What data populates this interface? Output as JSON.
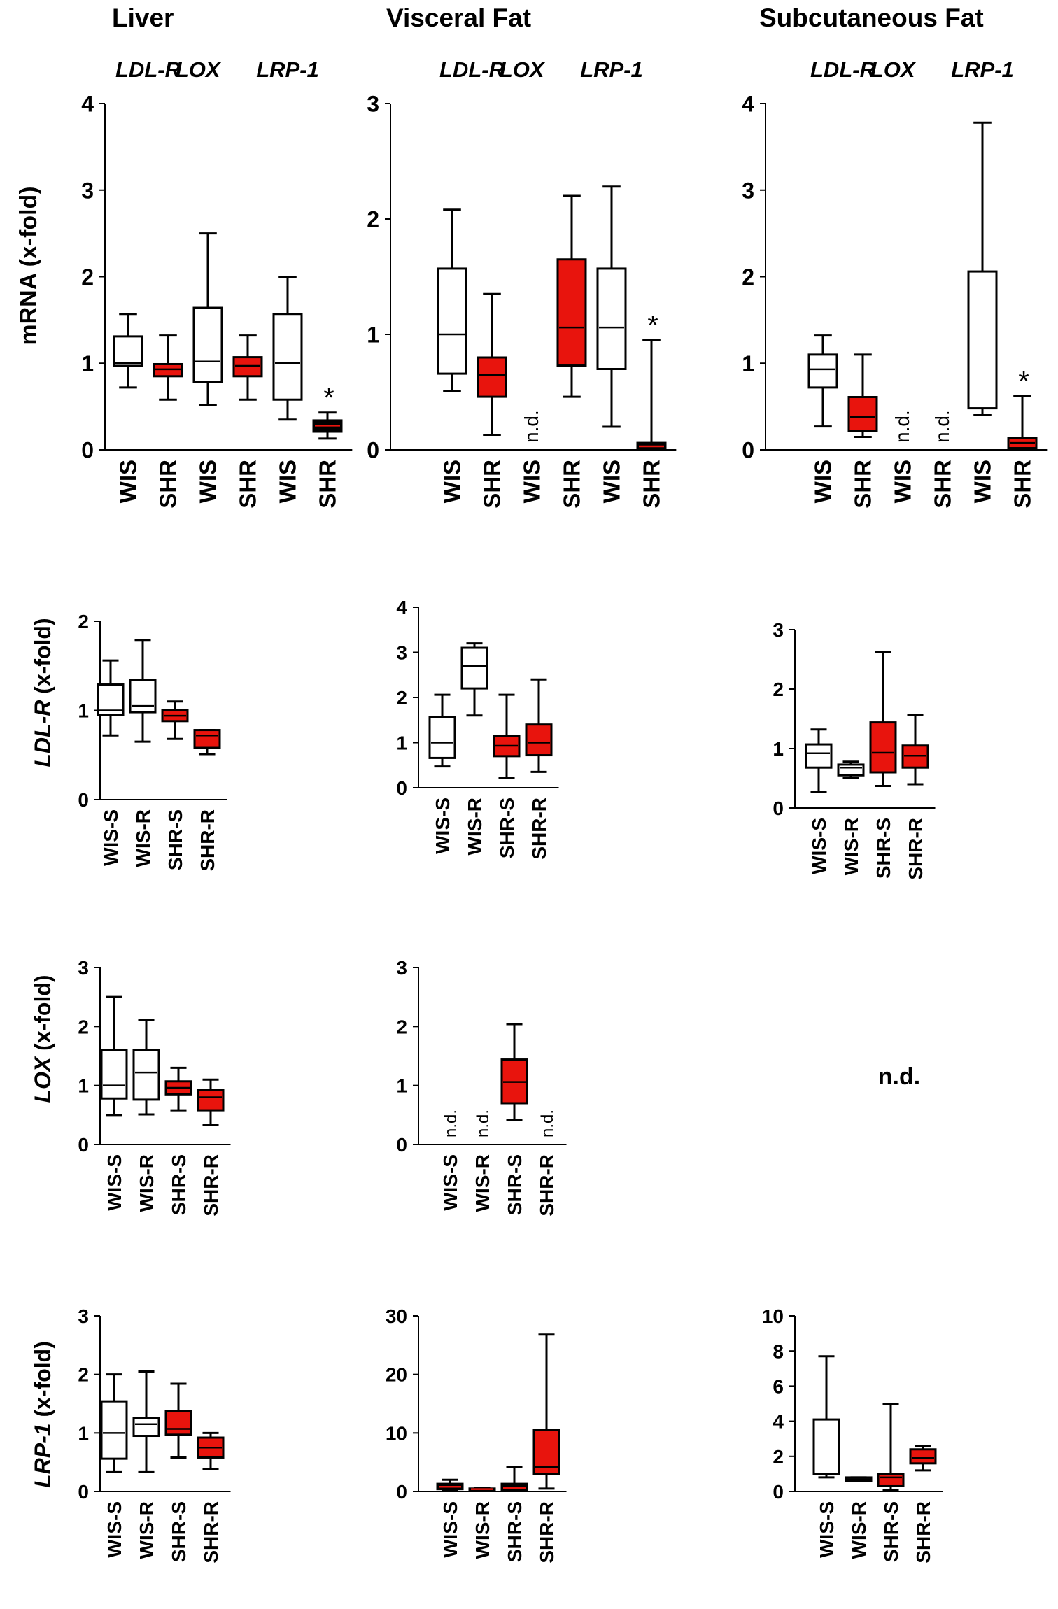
{
  "colors": {
    "wis": "#ffffff",
    "shr": "#e8140d",
    "shr_dark": "#000000",
    "line": "#000000",
    "median_on_red": "#000000",
    "median_on_white": "#000000",
    "median_on_black": "#e8140d"
  },
  "columns": {
    "liver": "Liver",
    "visceral": "Visceral Fat",
    "subcutaneous": "Subcutaneous Fat"
  },
  "row_labels": {
    "mrna": "mRNA (x-fold)",
    "ldlr": {
      "gene": "LDL-R",
      "suffix": " (x-fold)"
    },
    "lox": {
      "gene": "LOX",
      "suffix": " (x-fold)"
    },
    "lrp1": {
      "gene": "LRP-1",
      "suffix": " (x-fold)"
    }
  },
  "nd_label": "n.d.",
  "subcutaneous_lox_text": "n.d.",
  "chart_data": [
    {
      "id": "liver_mrna",
      "type": "box",
      "title": "Liver",
      "ylabel": "mRNA (x-fold)",
      "gene_groups": [
        "LDL-R",
        "LOX",
        "LRP-1"
      ],
      "ylim": [
        0,
        4
      ],
      "yticks": [
        0,
        1,
        2,
        3,
        4
      ],
      "categories": [
        "WIS",
        "SHR",
        "WIS",
        "SHR",
        "WIS",
        "SHR"
      ],
      "boxes": [
        {
          "cat": "WIS",
          "gene": "LDL-R",
          "fill": "wis",
          "min": 0.72,
          "q1": 0.97,
          "median": 1.0,
          "q3": 1.31,
          "max": 1.57
        },
        {
          "cat": "SHR",
          "gene": "LDL-R",
          "fill": "shr",
          "min": 0.58,
          "q1": 0.85,
          "median": 0.93,
          "q3": 0.99,
          "max": 1.32
        },
        {
          "cat": "WIS",
          "gene": "LOX",
          "fill": "wis",
          "min": 0.52,
          "q1": 0.78,
          "median": 1.02,
          "q3": 1.64,
          "max": 2.5
        },
        {
          "cat": "SHR",
          "gene": "LOX",
          "fill": "shr",
          "min": 0.58,
          "q1": 0.85,
          "median": 0.97,
          "q3": 1.07,
          "max": 1.32
        },
        {
          "cat": "WIS",
          "gene": "LRP-1",
          "fill": "wis",
          "min": 0.35,
          "q1": 0.58,
          "median": 1.0,
          "q3": 1.57,
          "max": 2.0
        },
        {
          "cat": "SHR",
          "gene": "LRP-1",
          "fill": "shr_dark",
          "min": 0.13,
          "q1": 0.21,
          "median": 0.28,
          "q3": 0.34,
          "max": 0.43,
          "star": "*"
        }
      ]
    },
    {
      "id": "visceral_mrna",
      "type": "box",
      "title": "Visceral Fat",
      "gene_groups": [
        "LDL-R",
        "LOX",
        "LRP-1"
      ],
      "ylim": [
        0,
        3
      ],
      "yticks": [
        0,
        1,
        2,
        3
      ],
      "categories": [
        "WIS",
        "SHR",
        "WIS",
        "SHR",
        "WIS",
        "SHR"
      ],
      "boxes": [
        {
          "cat": "WIS",
          "gene": "LDL-R",
          "fill": "wis",
          "min": 0.51,
          "q1": 0.66,
          "median": 1.0,
          "q3": 1.57,
          "max": 2.08
        },
        {
          "cat": "SHR",
          "gene": "LDL-R",
          "fill": "shr",
          "min": 0.13,
          "q1": 0.46,
          "median": 0.65,
          "q3": 0.8,
          "max": 1.35
        },
        {
          "cat": "WIS",
          "gene": "LOX",
          "nd": true
        },
        {
          "cat": "SHR",
          "gene": "LOX",
          "fill": "shr",
          "min": 0.46,
          "q1": 0.73,
          "median": 1.06,
          "q3": 1.65,
          "max": 2.2
        },
        {
          "cat": "WIS",
          "gene": "LRP-1",
          "fill": "wis",
          "min": 0.2,
          "q1": 0.7,
          "median": 1.06,
          "q3": 1.57,
          "max": 2.28
        },
        {
          "cat": "SHR",
          "gene": "LRP-1",
          "fill": "shr_dark",
          "min": 0.0,
          "q1": 0.01,
          "median": 0.03,
          "q3": 0.06,
          "max": 0.95,
          "star": "*"
        }
      ]
    },
    {
      "id": "subcutaneous_mrna",
      "type": "box",
      "title": "Subcutaneous Fat",
      "gene_groups": [
        "LDL-R",
        "LOX",
        "LRP-1"
      ],
      "ylim": [
        0,
        4
      ],
      "yticks": [
        0,
        1,
        2,
        3,
        4
      ],
      "categories": [
        "WIS",
        "SHR",
        "WIS",
        "SHR",
        "WIS",
        "SHR"
      ],
      "boxes": [
        {
          "cat": "WIS",
          "gene": "LDL-R",
          "fill": "wis",
          "min": 0.27,
          "q1": 0.72,
          "median": 0.93,
          "q3": 1.1,
          "max": 1.32
        },
        {
          "cat": "SHR",
          "gene": "LDL-R",
          "fill": "shr",
          "min": 0.15,
          "q1": 0.22,
          "median": 0.38,
          "q3": 0.61,
          "max": 1.1
        },
        {
          "cat": "WIS",
          "gene": "LOX",
          "nd": true
        },
        {
          "cat": "SHR",
          "gene": "LOX",
          "nd": true
        },
        {
          "cat": "WIS",
          "gene": "LRP-1",
          "fill": "wis",
          "min": 0.4,
          "q1": 0.48,
          "median": 0.48,
          "q3": 2.06,
          "max": 3.78
        },
        {
          "cat": "SHR",
          "gene": "LRP-1",
          "fill": "shr",
          "min": 0.0,
          "q1": 0.02,
          "median": 0.08,
          "q3": 0.14,
          "max": 0.62,
          "star": "*"
        }
      ]
    },
    {
      "id": "liver_ldlr",
      "type": "box",
      "ylabel": "LDL-R (x-fold)",
      "ylim": [
        0,
        2
      ],
      "yticks": [
        0,
        1,
        2
      ],
      "categories": [
        "WIS-S",
        "WIS-R",
        "SHR-S",
        "SHR-R"
      ],
      "boxes": [
        {
          "cat": "WIS-S",
          "fill": "wis",
          "min": 0.72,
          "q1": 0.95,
          "median": 1.0,
          "q3": 1.29,
          "max": 1.56
        },
        {
          "cat": "WIS-R",
          "fill": "wis",
          "min": 0.65,
          "q1": 0.98,
          "median": 1.05,
          "q3": 1.34,
          "max": 1.79
        },
        {
          "cat": "SHR-S",
          "fill": "shr",
          "min": 0.68,
          "q1": 0.88,
          "median": 0.94,
          "q3": 1.0,
          "max": 1.1
        },
        {
          "cat": "SHR-R",
          "fill": "shr",
          "min": 0.51,
          "q1": 0.58,
          "median": 0.72,
          "q3": 0.78,
          "max": 0.78
        }
      ]
    },
    {
      "id": "visceral_ldlr",
      "type": "box",
      "ylim": [
        0,
        4
      ],
      "yticks": [
        0,
        1,
        2,
        3,
        4
      ],
      "categories": [
        "WIS-S",
        "WIS-R",
        "SHR-S",
        "SHR-R"
      ],
      "boxes": [
        {
          "cat": "WIS-S",
          "fill": "wis",
          "min": 0.47,
          "q1": 0.66,
          "median": 1.0,
          "q3": 1.57,
          "max": 2.06
        },
        {
          "cat": "WIS-R",
          "fill": "wis",
          "min": 1.6,
          "q1": 2.2,
          "median": 2.7,
          "q3": 3.1,
          "max": 3.2
        },
        {
          "cat": "SHR-S",
          "fill": "shr",
          "min": 0.22,
          "q1": 0.7,
          "median": 0.93,
          "q3": 1.14,
          "max": 2.06
        },
        {
          "cat": "SHR-R",
          "fill": "shr",
          "min": 0.35,
          "q1": 0.72,
          "median": 1.0,
          "q3": 1.4,
          "max": 2.4
        }
      ]
    },
    {
      "id": "subcutaneous_ldlr",
      "type": "box",
      "ylim": [
        0,
        3
      ],
      "yticks": [
        0,
        1,
        2,
        3
      ],
      "categories": [
        "WIS-S",
        "WIS-R",
        "SHR-S",
        "SHR-R"
      ],
      "boxes": [
        {
          "cat": "WIS-S",
          "fill": "wis",
          "min": 0.27,
          "q1": 0.68,
          "median": 0.92,
          "q3": 1.07,
          "max": 1.32
        },
        {
          "cat": "WIS-R",
          "fill": "wis",
          "min": 0.51,
          "q1": 0.55,
          "median": 0.68,
          "q3": 0.73,
          "max": 0.78
        },
        {
          "cat": "SHR-S",
          "fill": "shr",
          "min": 0.37,
          "q1": 0.6,
          "median": 0.93,
          "q3": 1.44,
          "max": 2.62
        },
        {
          "cat": "SHR-R",
          "fill": "shr",
          "min": 0.4,
          "q1": 0.68,
          "median": 0.88,
          "q3": 1.05,
          "max": 1.57
        }
      ]
    },
    {
      "id": "liver_lox",
      "type": "box",
      "ylabel": "LOX (x-fold)",
      "ylim": [
        0,
        3
      ],
      "yticks": [
        0,
        1,
        2,
        3
      ],
      "categories": [
        "WIS-S",
        "WIS-R",
        "SHR-S",
        "SHR-R"
      ],
      "boxes": [
        {
          "cat": "WIS-S",
          "fill": "wis",
          "min": 0.5,
          "q1": 0.78,
          "median": 1.0,
          "q3": 1.6,
          "max": 2.5
        },
        {
          "cat": "WIS-R",
          "fill": "wis",
          "min": 0.51,
          "q1": 0.76,
          "median": 1.22,
          "q3": 1.6,
          "max": 2.11
        },
        {
          "cat": "SHR-S",
          "fill": "shr",
          "min": 0.58,
          "q1": 0.85,
          "median": 0.96,
          "q3": 1.07,
          "max": 1.3
        },
        {
          "cat": "SHR-R",
          "fill": "shr",
          "min": 0.33,
          "q1": 0.58,
          "median": 0.8,
          "q3": 0.93,
          "max": 1.1
        }
      ]
    },
    {
      "id": "visceral_lox",
      "type": "box",
      "ylim": [
        0,
        3
      ],
      "yticks": [
        0,
        1,
        2,
        3
      ],
      "categories": [
        "WIS-S",
        "WIS-R",
        "SHR-S",
        "SHR-R"
      ],
      "boxes": [
        {
          "cat": "WIS-S",
          "nd": true
        },
        {
          "cat": "WIS-R",
          "nd": true
        },
        {
          "cat": "SHR-S",
          "fill": "shr",
          "min": 0.42,
          "q1": 0.7,
          "median": 1.06,
          "q3": 1.44,
          "max": 2.04
        },
        {
          "cat": "SHR-R",
          "nd": true
        }
      ]
    },
    {
      "id": "liver_lrp1",
      "type": "box",
      "ylabel": "LRP-1 (x-fold)",
      "ylim": [
        0,
        3
      ],
      "yticks": [
        0,
        1,
        2,
        3
      ],
      "categories": [
        "WIS-S",
        "WIS-R",
        "SHR-S",
        "SHR-R"
      ],
      "boxes": [
        {
          "cat": "WIS-S",
          "fill": "wis",
          "min": 0.33,
          "q1": 0.56,
          "median": 1.0,
          "q3": 1.54,
          "max": 2.0
        },
        {
          "cat": "WIS-R",
          "fill": "wis",
          "min": 0.33,
          "q1": 0.95,
          "median": 1.15,
          "q3": 1.26,
          "max": 2.05
        },
        {
          "cat": "SHR-S",
          "fill": "shr",
          "min": 0.58,
          "q1": 0.97,
          "median": 1.07,
          "q3": 1.38,
          "max": 1.84
        },
        {
          "cat": "SHR-R",
          "fill": "shr",
          "min": 0.38,
          "q1": 0.58,
          "median": 0.75,
          "q3": 0.92,
          "max": 1.0
        }
      ]
    },
    {
      "id": "visceral_lrp1",
      "type": "box",
      "ylim": [
        0,
        30
      ],
      "yticks": [
        0,
        10,
        20,
        30
      ],
      "categories": [
        "WIS-S",
        "WIS-R",
        "SHR-S",
        "SHR-R"
      ],
      "boxes": [
        {
          "cat": "WIS-S",
          "fill": "shr_dark",
          "min": 0.1,
          "q1": 0.4,
          "median": 0.8,
          "q3": 1.3,
          "max": 2.0
        },
        {
          "cat": "WIS-R",
          "fill": "shr_dark",
          "min": 0.2,
          "q1": 0.3,
          "median": 0.4,
          "q3": 0.5,
          "max": 0.6
        },
        {
          "cat": "SHR-S",
          "fill": "shr_dark",
          "min": 0.1,
          "q1": 0.3,
          "median": 0.6,
          "q3": 1.3,
          "max": 4.2
        },
        {
          "cat": "SHR-R",
          "fill": "shr",
          "min": 0.5,
          "q1": 3.0,
          "median": 4.2,
          "q3": 10.5,
          "max": 26.8
        }
      ]
    },
    {
      "id": "subcutaneous_lrp1",
      "type": "box",
      "ylim": [
        0,
        10
      ],
      "yticks": [
        0,
        2,
        4,
        6,
        8,
        10
      ],
      "categories": [
        "WIS-S",
        "WIS-R",
        "SHR-S",
        "SHR-R"
      ],
      "boxes": [
        {
          "cat": "WIS-S",
          "fill": "wis",
          "min": 0.8,
          "q1": 1.0,
          "median": 1.0,
          "q3": 4.1,
          "max": 7.7
        },
        {
          "cat": "WIS-R",
          "fill": "wis",
          "min": 0.6,
          "q1": 0.6,
          "median": 0.7,
          "q3": 0.8,
          "max": 0.8
        },
        {
          "cat": "SHR-S",
          "fill": "shr",
          "min": 0.1,
          "q1": 0.3,
          "median": 0.8,
          "q3": 1.0,
          "max": 5.0
        },
        {
          "cat": "SHR-R",
          "fill": "shr",
          "min": 1.2,
          "q1": 1.6,
          "median": 1.9,
          "q3": 2.4,
          "max": 2.6
        }
      ]
    }
  ]
}
